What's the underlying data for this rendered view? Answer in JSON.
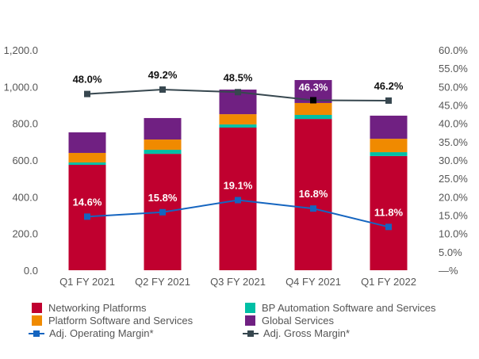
{
  "chart_data": {
    "type": "bar",
    "stacked": true,
    "title": "",
    "xlabel": "",
    "ylabel": "",
    "categories": [
      "Q1 FY 2021",
      "Q2 FY 2021",
      "Q3 FY 2021",
      "Q4 FY 2021",
      "Q1 FY 2022"
    ],
    "series": [
      {
        "name": "Networking Platforms",
        "color": "#C0002F",
        "values": [
          574,
          634,
          777,
          824,
          622
        ]
      },
      {
        "name": "BP Automation Software and Services",
        "color": "#00BFA5",
        "values": [
          13,
          22,
          17,
          22,
          21
        ]
      },
      {
        "name": "Platform Software and Services",
        "color": "#F08A00",
        "values": [
          52,
          56,
          56,
          65,
          73
        ]
      },
      {
        "name": "Global Services",
        "color": "#702082",
        "values": [
          112,
          117,
          134,
          125,
          126
        ]
      }
    ],
    "line_series": [
      {
        "name": "Adj. Operating Margin*",
        "color": "#1565C0",
        "axis": "right",
        "values": [
          14.6,
          15.8,
          19.1,
          16.8,
          11.8
        ],
        "labels": [
          "14.6%",
          "15.8%",
          "19.1%",
          "16.8%",
          "11.8%"
        ]
      },
      {
        "name": "Adj. Gross Margin*",
        "color": "#37474F",
        "axis": "right",
        "values": [
          48.0,
          49.2,
          48.5,
          46.3,
          46.2
        ],
        "labels": [
          "48.0%",
          "49.2%",
          "48.5%",
          "46.3%",
          "46.2%"
        ]
      }
    ],
    "y_left": {
      "range": [
        0,
        1200
      ],
      "ticks": [
        0,
        200,
        400,
        600,
        800,
        1000,
        1200
      ],
      "tick_labels": [
        "0.0",
        "200.0",
        "400.0",
        "600.0",
        "800.0",
        "1,000.0",
        "1,200.0"
      ]
    },
    "y_right": {
      "range": [
        0,
        60
      ],
      "ticks": [
        0,
        5,
        10,
        15,
        20,
        25,
        30,
        35,
        40,
        45,
        50,
        55,
        60
      ],
      "tick_labels": [
        "—%",
        "5.0%",
        "10.0%",
        "15.0%",
        "20.0%",
        "25.0%",
        "30.0%",
        "35.0%",
        "40.0%",
        "45.0%",
        "50.0%",
        "55.0%",
        "60.0%"
      ]
    },
    "grid": false,
    "legend_position": "bottom"
  },
  "legend": {
    "items": [
      {
        "label": "Networking Platforms",
        "kind": "swatch",
        "color": "#C0002F"
      },
      {
        "label": "BP Automation Software and Services",
        "kind": "swatch",
        "color": "#00BFA5"
      },
      {
        "label": "Platform Software and Services",
        "kind": "swatch",
        "color": "#F08A00"
      },
      {
        "label": "Global Services",
        "kind": "swatch",
        "color": "#702082"
      },
      {
        "label": "Adj. Operating Margin*",
        "kind": "line",
        "color": "#1565C0"
      },
      {
        "label": "Adj. Gross Margin*",
        "kind": "line",
        "color": "#37474F"
      }
    ]
  }
}
